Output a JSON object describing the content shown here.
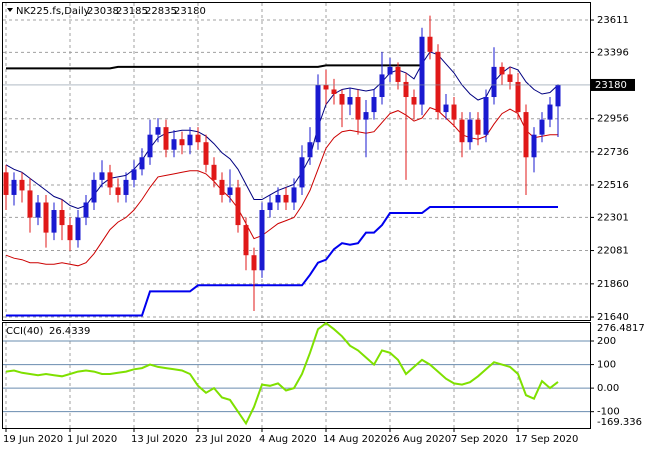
{
  "chart_data": [
    {
      "type": "candlestick",
      "title": "NK225.fs,Daily",
      "categories": [
        "19 Jun 2020",
        null,
        null,
        null,
        null,
        null,
        null,
        null,
        "1 Jul 2020",
        null,
        null,
        null,
        null,
        null,
        null,
        null,
        "13 Jul 2020",
        null,
        null,
        null,
        null,
        null,
        null,
        null,
        "23 Jul 2020",
        null,
        null,
        null,
        null,
        null,
        null,
        null,
        "4 Aug 2020",
        null,
        null,
        null,
        null,
        null,
        null,
        null,
        "14 Aug 2020",
        null,
        null,
        null,
        null,
        null,
        null,
        null,
        "26 Aug 2020",
        null,
        null,
        null,
        null,
        null,
        null,
        null,
        "7 Sep 2020",
        null,
        null,
        null,
        null,
        null,
        null,
        null,
        "17 Sep 2020",
        null,
        null,
        null,
        null,
        null
      ],
      "open": [
        22600,
        22450,
        22550,
        22480,
        22300,
        22400,
        22200,
        22350,
        22250,
        22150,
        22300,
        22400,
        22550,
        22600,
        22500,
        22450,
        22550,
        22620,
        22700,
        22850,
        22900,
        22750,
        22820,
        22780,
        22850,
        22800,
        22650,
        22550,
        22450,
        22500,
        22250,
        22050,
        21950,
        22350,
        22400,
        22450,
        22400,
        22500,
        22700,
        22800,
        23180,
        23150,
        23120,
        23050,
        23100,
        22950,
        23000,
        23100,
        23250,
        23300,
        23200,
        23100,
        23050,
        23500,
        23400,
        23000,
        23050,
        22950,
        22800,
        22950,
        22850,
        23100,
        23300,
        23250,
        23200,
        23000,
        22700,
        22850,
        22950,
        23038
      ],
      "high": [
        22650,
        22600,
        22600,
        22560,
        22450,
        22450,
        22400,
        22420,
        22300,
        22350,
        22450,
        22600,
        22680,
        22650,
        22560,
        22600,
        22680,
        22760,
        22950,
        22960,
        22950,
        22880,
        22870,
        22900,
        22900,
        22850,
        22700,
        22600,
        22620,
        22550,
        22300,
        22100,
        22400,
        22450,
        22500,
        22500,
        22560,
        22780,
        22900,
        23250,
        23280,
        23220,
        23150,
        23160,
        23150,
        23080,
        23150,
        23400,
        23360,
        23330,
        23260,
        23150,
        23560,
        23640,
        23450,
        23120,
        23100,
        23000,
        23000,
        23000,
        23150,
        23430,
        23330,
        23300,
        23260,
        23050,
        22900,
        23000,
        23100,
        23185
      ],
      "low": [
        22350,
        22380,
        22400,
        22200,
        22250,
        22100,
        22150,
        22150,
        22080,
        22100,
        22250,
        22350,
        22500,
        22450,
        22400,
        22400,
        22500,
        22580,
        22650,
        22800,
        22700,
        22700,
        22720,
        22720,
        22750,
        22600,
        22500,
        22400,
        22400,
        22200,
        21950,
        21680,
        21900,
        22300,
        22350,
        22350,
        22350,
        22450,
        22650,
        22750,
        23050,
        23050,
        22900,
        22980,
        22850,
        22700,
        22950,
        23050,
        23200,
        23150,
        22550,
        22950,
        22980,
        23350,
        22950,
        22950,
        22900,
        22700,
        22750,
        22780,
        22800,
        23050,
        23180,
        23150,
        22950,
        22450,
        22600,
        22800,
        22900,
        22835
      ],
      "close": [
        22450,
        22550,
        22480,
        22300,
        22400,
        22200,
        22350,
        22250,
        22150,
        22300,
        22400,
        22550,
        22600,
        22500,
        22450,
        22550,
        22620,
        22700,
        22850,
        22900,
        22750,
        22820,
        22780,
        22850,
        22800,
        22650,
        22550,
        22450,
        22500,
        22250,
        22050,
        21950,
        22350,
        22400,
        22450,
        22400,
        22500,
        22700,
        22800,
        23180,
        23150,
        23120,
        23050,
        23100,
        22950,
        23000,
        23100,
        23250,
        23300,
        23200,
        23100,
        23050,
        23500,
        23400,
        23000,
        23050,
        22950,
        22800,
        22950,
        22850,
        23100,
        23300,
        23250,
        23200,
        23000,
        22700,
        22850,
        22950,
        23050,
        23180
      ],
      "up_color": "#1a1ad0",
      "down_color": "#e01818",
      "series": [
        {
          "color": "#000000",
          "width": 2,
          "values": [
            23290,
            23290,
            23290,
            23290,
            23290,
            23290,
            23290,
            23290,
            23290,
            23290,
            23290,
            23290,
            23290,
            23290,
            23300,
            23300,
            23300,
            23300,
            23300,
            23300,
            23300,
            23300,
            23300,
            23300,
            23300,
            23300,
            23300,
            23300,
            23300,
            23300,
            23300,
            23300,
            23300,
            23300,
            23300,
            23300,
            23300,
            23300,
            23300,
            23300,
            23310,
            23310,
            23310,
            23310,
            23310,
            23310,
            23310,
            23310,
            23310,
            23310,
            23310,
            23310,
            23310,
            null,
            null,
            null,
            null,
            null,
            null,
            null,
            null,
            null,
            null,
            null,
            null,
            null,
            null,
            null,
            null,
            null
          ]
        },
        {
          "color": "#0000ee",
          "width": 2,
          "values": [
            21650,
            21650,
            21650,
            21650,
            21650,
            21650,
            21650,
            21650,
            21650,
            21650,
            21650,
            21650,
            21650,
            21650,
            21650,
            21650,
            21650,
            21650,
            21810,
            21810,
            21810,
            21810,
            21810,
            21810,
            21850,
            21850,
            21850,
            21850,
            21850,
            21850,
            21850,
            21850,
            21850,
            21850,
            21850,
            21850,
            21850,
            21850,
            21920,
            22000,
            22020,
            22090,
            22130,
            22120,
            22130,
            22200,
            22200,
            22250,
            22330,
            22330,
            22330,
            22330,
            22330,
            22370,
            22370,
            22370,
            22370,
            22370,
            22370,
            22370,
            22370,
            22370,
            22370,
            22370,
            22370,
            22370,
            22370,
            22370,
            22370,
            22370
          ]
        },
        {
          "color": "#000080",
          "width": 1,
          "values": [
            22650,
            22620,
            22600,
            22560,
            22520,
            22480,
            22440,
            22420,
            22380,
            22360,
            22380,
            22450,
            22520,
            22560,
            22570,
            22580,
            22620,
            22680,
            22760,
            22830,
            22860,
            22870,
            22880,
            22880,
            22870,
            22840,
            22790,
            22730,
            22690,
            22620,
            22520,
            22420,
            22420,
            22450,
            22480,
            22500,
            22520,
            22600,
            22700,
            22900,
            23050,
            23120,
            23150,
            23160,
            23150,
            23140,
            23150,
            23200,
            23260,
            23280,
            23260,
            23220,
            23320,
            23400,
            23380,
            23320,
            23260,
            23180,
            23120,
            23080,
            23100,
            23200,
            23260,
            23300,
            23280,
            23200,
            23150,
            23120,
            23130,
            23180
          ]
        },
        {
          "color": "#cc0000",
          "width": 1,
          "values": [
            22050,
            22030,
            22020,
            22000,
            22000,
            21990,
            21990,
            22000,
            21990,
            21980,
            22000,
            22060,
            22140,
            22220,
            22270,
            22300,
            22350,
            22420,
            22500,
            22570,
            22580,
            22590,
            22600,
            22610,
            22610,
            22590,
            22540,
            22480,
            22430,
            22360,
            22260,
            22160,
            22180,
            22220,
            22260,
            22280,
            22300,
            22380,
            22480,
            22620,
            22760,
            22830,
            22870,
            22880,
            22870,
            22860,
            22870,
            22930,
            22990,
            23010,
            22980,
            22940,
            22960,
            23030,
            23010,
            22960,
            22910,
            22850,
            22830,
            22820,
            22840,
            22920,
            22990,
            23020,
            22990,
            22880,
            22830,
            22840,
            22850,
            22850
          ]
        }
      ],
      "ylim": [
        21620,
        23724
      ],
      "yticks": [
        21640,
        21860,
        22081,
        22301,
        22516,
        22736,
        22956,
        23396,
        23611
      ],
      "grid": true
    },
    {
      "type": "line",
      "series": [
        {
          "name": "CCI(40)",
          "color": "#7fe000",
          "values": [
            70,
            75,
            65,
            60,
            55,
            60,
            55,
            50,
            60,
            70,
            75,
            70,
            60,
            60,
            65,
            70,
            80,
            85,
            100,
            90,
            85,
            80,
            75,
            60,
            10,
            -20,
            0,
            -40,
            -50,
            -100,
            -150,
            -80,
            15,
            10,
            20,
            -10,
            0,
            60,
            150,
            250,
            276,
            250,
            220,
            180,
            160,
            130,
            100,
            160,
            150,
            120,
            60,
            90,
            120,
            100,
            70,
            40,
            20,
            15,
            25,
            50,
            80,
            110,
            100,
            90,
            60,
            -30,
            -45,
            30,
            0,
            26.4339
          ]
        }
      ],
      "ylim": [
        -169.336,
        276.4817
      ],
      "yticks": [
        200,
        100,
        {
          "value": 0,
          "label": "0.00"
        },
        -100
      ]
    }
  ]
}
